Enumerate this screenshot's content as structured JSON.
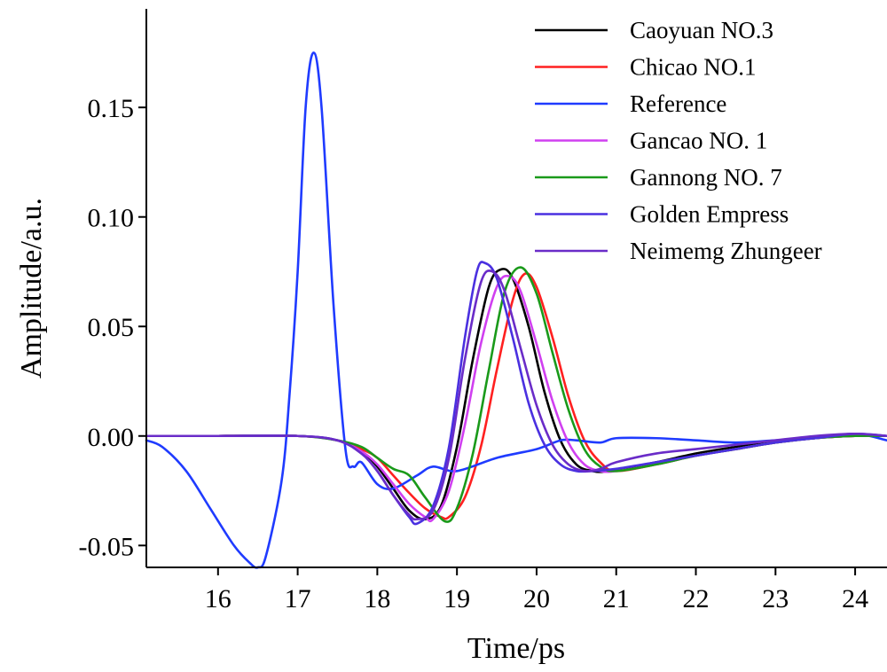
{
  "chart_data": {
    "type": "line",
    "title": "",
    "xlabel": "Time/ps",
    "ylabel": "Amplitude/a.u.",
    "xlim": [
      15.1,
      24.4
    ],
    "ylim": [
      -0.06,
      0.195
    ],
    "xticks": [
      16,
      17,
      18,
      19,
      20,
      21,
      22,
      23,
      24
    ],
    "xtick_labels": [
      "16",
      "17",
      "18",
      "19",
      "20",
      "21",
      "22",
      "23",
      "24"
    ],
    "yticks": [
      -0.05,
      0,
      0.05,
      0.1,
      0.15
    ],
    "ytick_labels": [
      "-0.05",
      "0.00",
      "0.05",
      "0.10",
      "0.15"
    ],
    "grid": false,
    "legend_position": "top-right",
    "series": [
      {
        "name": "Caoyuan NO.3",
        "color": "#000000",
        "x": [
          15.1,
          16.0,
          17.0,
          17.5,
          17.8,
          18.0,
          18.2,
          18.4,
          18.6,
          18.8,
          19.0,
          19.2,
          19.4,
          19.55,
          19.7,
          19.9,
          20.1,
          20.3,
          20.5,
          20.7,
          20.9,
          21.5,
          22.0,
          22.5,
          23.0,
          23.5,
          24.0,
          24.4
        ],
        "y": [
          0.0,
          0.0,
          0.0,
          -0.002,
          -0.007,
          -0.014,
          -0.024,
          -0.034,
          -0.038,
          -0.032,
          -0.005,
          0.035,
          0.068,
          0.076,
          0.072,
          0.05,
          0.02,
          -0.002,
          -0.013,
          -0.016,
          -0.016,
          -0.012,
          -0.008,
          -0.005,
          -0.003,
          -0.001,
          0.0,
          0.0
        ]
      },
      {
        "name": "Chicao NO.1",
        "color": "#ff2020",
        "x": [
          15.1,
          16.0,
          17.0,
          17.5,
          17.8,
          18.0,
          18.2,
          18.4,
          18.6,
          18.8,
          18.9,
          19.1,
          19.3,
          19.5,
          19.7,
          19.85,
          20.0,
          20.2,
          20.4,
          20.6,
          20.8,
          21.0,
          21.5,
          22.0,
          22.5,
          23.0,
          23.5,
          24.0,
          24.4
        ],
        "y": [
          0.0,
          0.0,
          0.0,
          -0.002,
          -0.006,
          -0.01,
          -0.018,
          -0.026,
          -0.033,
          -0.037,
          -0.037,
          -0.028,
          -0.005,
          0.03,
          0.062,
          0.074,
          0.068,
          0.045,
          0.018,
          -0.002,
          -0.012,
          -0.016,
          -0.013,
          -0.009,
          -0.006,
          -0.003,
          -0.001,
          0.0,
          0.0
        ]
      },
      {
        "name": "Reference",
        "color": "#1f3bff",
        "x": [
          15.1,
          15.3,
          15.6,
          15.9,
          16.2,
          16.4,
          16.5,
          16.6,
          16.8,
          16.9,
          17.0,
          17.1,
          17.2,
          17.3,
          17.45,
          17.6,
          17.7,
          17.8,
          18.0,
          18.2,
          18.5,
          18.7,
          19.0,
          19.5,
          20.0,
          20.3,
          20.5,
          20.8,
          21.0,
          21.5,
          22.0,
          22.5,
          23.0,
          23.5,
          24.0,
          24.4
        ],
        "y": [
          -0.002,
          -0.005,
          -0.016,
          -0.033,
          -0.05,
          -0.058,
          -0.06,
          -0.055,
          -0.02,
          0.02,
          0.075,
          0.15,
          0.175,
          0.15,
          0.06,
          -0.006,
          -0.014,
          -0.012,
          -0.022,
          -0.024,
          -0.018,
          -0.014,
          -0.016,
          -0.01,
          -0.006,
          -0.002,
          -0.002,
          -0.003,
          -0.001,
          -0.001,
          -0.002,
          -0.003,
          -0.002,
          -0.001,
          0.001,
          -0.002
        ]
      },
      {
        "name": "Gancao NO. 1",
        "color": "#d040f0",
        "x": [
          15.1,
          16.0,
          17.0,
          17.5,
          17.8,
          18.0,
          18.2,
          18.4,
          18.6,
          18.7,
          18.9,
          19.1,
          19.3,
          19.5,
          19.65,
          19.8,
          20.0,
          20.2,
          20.4,
          20.6,
          20.8,
          21.0,
          21.5,
          22.0,
          22.5,
          23.0,
          23.5,
          24.0,
          24.4
        ],
        "y": [
          0.0,
          0.0,
          0.0,
          -0.002,
          -0.007,
          -0.013,
          -0.022,
          -0.031,
          -0.037,
          -0.038,
          -0.025,
          0.005,
          0.042,
          0.068,
          0.073,
          0.066,
          0.042,
          0.016,
          -0.003,
          -0.013,
          -0.016,
          -0.016,
          -0.013,
          -0.009,
          -0.006,
          -0.003,
          -0.001,
          0.0,
          0.0
        ]
      },
      {
        "name": "Gannong NO. 7",
        "color": "#1a9a1a",
        "x": [
          15.1,
          16.0,
          17.0,
          17.5,
          17.8,
          18.0,
          18.2,
          18.4,
          18.6,
          18.85,
          19.0,
          19.2,
          19.4,
          19.6,
          19.8,
          20.0,
          20.2,
          20.4,
          20.6,
          20.8,
          21.0,
          21.5,
          22.0,
          22.5,
          23.0,
          23.5,
          24.0,
          24.4
        ],
        "y": [
          0.0,
          0.0,
          0.0,
          -0.002,
          -0.005,
          -0.01,
          -0.015,
          -0.018,
          -0.028,
          -0.039,
          -0.033,
          -0.008,
          0.03,
          0.066,
          0.077,
          0.065,
          0.038,
          0.012,
          -0.006,
          -0.014,
          -0.016,
          -0.013,
          -0.009,
          -0.006,
          -0.003,
          -0.001,
          0.0,
          0.0
        ]
      },
      {
        "name": "Golden Empress",
        "color": "#4a30e0",
        "x": [
          15.1,
          16.0,
          17.0,
          17.5,
          17.8,
          18.0,
          18.2,
          18.4,
          18.5,
          18.7,
          18.9,
          19.1,
          19.25,
          19.35,
          19.5,
          19.7,
          19.9,
          20.1,
          20.3,
          20.5,
          20.7,
          21.0,
          21.5,
          22.0,
          22.5,
          23.0,
          23.5,
          24.0,
          24.4
        ],
        "y": [
          0.0,
          0.0,
          0.0,
          -0.002,
          -0.008,
          -0.016,
          -0.027,
          -0.037,
          -0.04,
          -0.032,
          -0.005,
          0.045,
          0.075,
          0.079,
          0.072,
          0.045,
          0.015,
          -0.004,
          -0.013,
          -0.016,
          -0.016,
          -0.015,
          -0.012,
          -0.009,
          -0.006,
          -0.003,
          -0.001,
          0.001,
          0.0
        ]
      },
      {
        "name": "Neimemg Zhungeer",
        "color": "#6a2cc8",
        "x": [
          15.1,
          16.0,
          17.0,
          17.5,
          17.8,
          18.0,
          18.2,
          18.4,
          18.5,
          18.7,
          18.9,
          19.1,
          19.3,
          19.45,
          19.6,
          19.8,
          20.0,
          20.2,
          20.4,
          20.6,
          20.8,
          21.0,
          21.5,
          22.0,
          22.5,
          23.0,
          23.5,
          24.0,
          24.4
        ],
        "y": [
          0.0,
          0.0,
          0.0,
          -0.002,
          -0.008,
          -0.016,
          -0.027,
          -0.036,
          -0.038,
          -0.034,
          -0.01,
          0.035,
          0.07,
          0.075,
          0.066,
          0.04,
          0.014,
          -0.004,
          -0.013,
          -0.016,
          -0.015,
          -0.012,
          -0.008,
          -0.006,
          -0.004,
          -0.002,
          0.0,
          0.001,
          0.0
        ]
      }
    ]
  }
}
